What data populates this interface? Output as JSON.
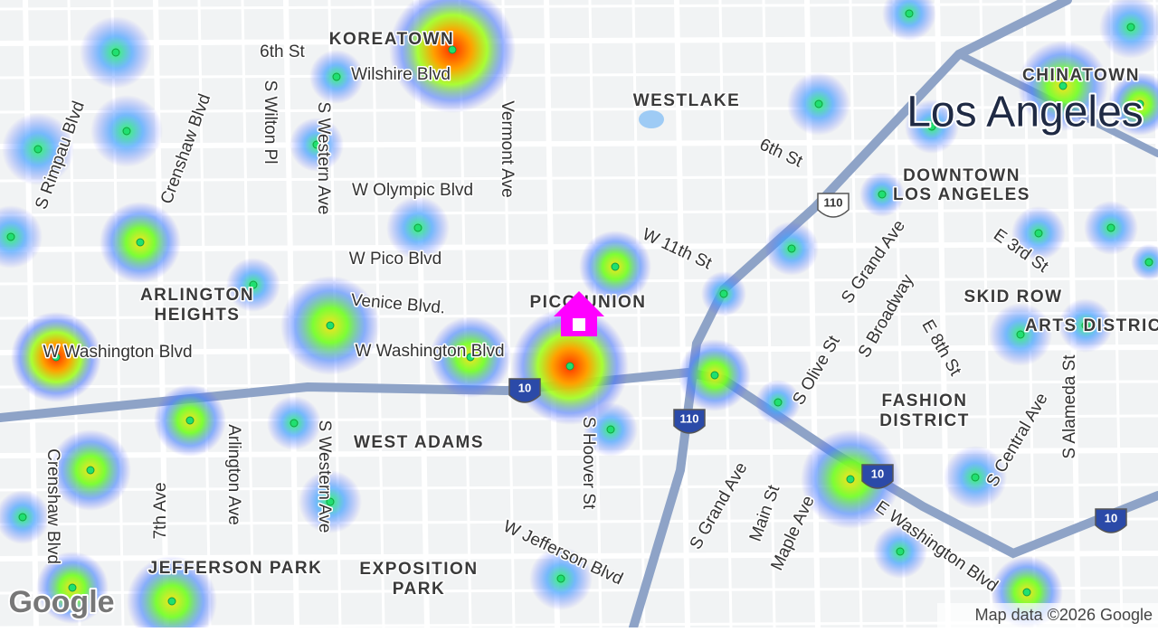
{
  "map": {
    "labels": [
      {
        "text": "KOREATOWN"
      },
      {
        "text": "6th St"
      },
      {
        "text": "Wilshire Blvd"
      },
      {
        "text": "S Rimpau Blvd"
      },
      {
        "text": "Crenshaw Blvd"
      },
      {
        "text": "S Wilton Pl"
      },
      {
        "text": "S Western Ave"
      },
      {
        "text": "Vermont Ave"
      },
      {
        "text": "WESTLAKE"
      },
      {
        "text": "Los Angeles"
      },
      {
        "text": "CHINATOWN"
      },
      {
        "text": "6th St"
      },
      {
        "text": "DOWNTOWN"
      },
      {
        "text": "LOS ANGELES"
      },
      {
        "text": "W Olympic Blvd"
      },
      {
        "text": "W 11th St"
      },
      {
        "text": "S Grand Ave"
      },
      {
        "text": "E 3rd St"
      },
      {
        "text": "W Pico Blvd"
      },
      {
        "text": "ARLINGTON"
      },
      {
        "text": "HEIGHTS"
      },
      {
        "text": "Venice Blvd."
      },
      {
        "text": "PICO-UNION"
      },
      {
        "text": "SKID ROW"
      },
      {
        "text": "ARTS DISTRICT"
      },
      {
        "text": "S Broadway"
      },
      {
        "text": "E 8th St"
      },
      {
        "text": "S Olive St"
      },
      {
        "text": "W Washington Blvd"
      },
      {
        "text": "W Washington Blvd"
      },
      {
        "text": "FASHION"
      },
      {
        "text": "DISTRICT"
      },
      {
        "text": "S Central Ave"
      },
      {
        "text": "S Alameda St"
      },
      {
        "text": "WEST ADAMS"
      },
      {
        "text": "Arlington Ave"
      },
      {
        "text": "S Western Ave"
      },
      {
        "text": "S Hoover St"
      },
      {
        "text": "Crenshaw Blvd"
      },
      {
        "text": "7th Ave"
      },
      {
        "text": "S Grand Ave"
      },
      {
        "text": "Main St"
      },
      {
        "text": "Maple Ave"
      },
      {
        "text": "E Washington Blvd"
      },
      {
        "text": "W Jefferson Blvd"
      },
      {
        "text": "JEFFERSON PARK"
      },
      {
        "text": "EXPOSITION"
      },
      {
        "text": "PARK"
      }
    ],
    "shields": [
      "110",
      "110",
      "10",
      "10",
      "10"
    ],
    "logo": "Google",
    "attribution": "Map data ©2026 Google"
  }
}
